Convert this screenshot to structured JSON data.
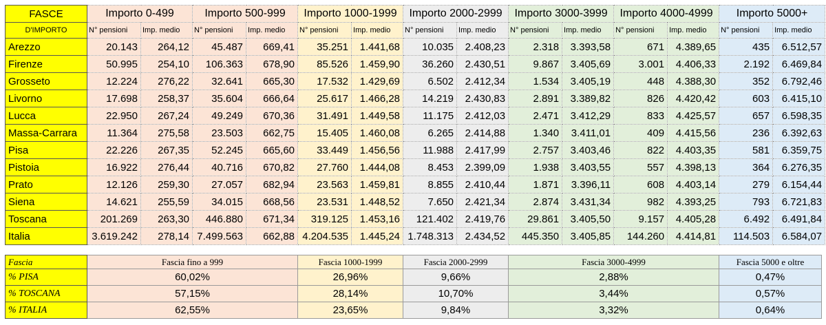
{
  "table1": {
    "corner": [
      "FASCE",
      "D'IMPORTO"
    ],
    "bands": [
      "Importo 0-499",
      "Importo 500-999",
      "Importo 1000-1999",
      "Importo 2000-2999",
      "Importo 3000-3999",
      "Importo 4000-4999",
      "Importo 5000+"
    ],
    "sub_labels": [
      "N° pensioni",
      "Imp. medio"
    ],
    "rows": [
      {
        "name": "Arezzo",
        "vals": [
          "20.143",
          "264,12",
          "45.487",
          "669,41",
          "35.251",
          "1.441,68",
          "10.035",
          "2.408,23",
          "2.318",
          "3.393,58",
          "671",
          "4.389,65",
          "435",
          "6.512,57"
        ]
      },
      {
        "name": "Firenze",
        "vals": [
          "50.995",
          "254,10",
          "106.363",
          "678,90",
          "85.526",
          "1.459,90",
          "36.260",
          "2.430,51",
          "9.867",
          "3.405,69",
          "3.001",
          "4.406,33",
          "2.192",
          "6.469,84"
        ]
      },
      {
        "name": "Grosseto",
        "vals": [
          "12.224",
          "276,22",
          "32.641",
          "665,30",
          "17.532",
          "1.429,69",
          "6.502",
          "2.412,34",
          "1.534",
          "3.405,19",
          "448",
          "4.388,30",
          "352",
          "6.792,46"
        ]
      },
      {
        "name": "Livorno",
        "vals": [
          "17.698",
          "258,37",
          "35.604",
          "666,64",
          "25.617",
          "1.466,28",
          "14.219",
          "2.430,83",
          "2.891",
          "3.389,82",
          "826",
          "4.420,42",
          "603",
          "6.415,10"
        ]
      },
      {
        "name": "Lucca",
        "vals": [
          "22.950",
          "267,24",
          "49.249",
          "670,36",
          "31.491",
          "1.449,58",
          "11.175",
          "2.412,03",
          "2.471",
          "3.412,29",
          "833",
          "4.425,57",
          "657",
          "6.598,35"
        ]
      },
      {
        "name": "Massa-Carrara",
        "vals": [
          "11.364",
          "275,58",
          "23.503",
          "662,75",
          "15.405",
          "1.460,08",
          "6.265",
          "2.414,88",
          "1.340",
          "3.411,01",
          "409",
          "4.415,56",
          "236",
          "6.392,63"
        ]
      },
      {
        "name": "Pisa",
        "vals": [
          "22.226",
          "267,35",
          "52.245",
          "665,60",
          "33.449",
          "1.456,56",
          "11.988",
          "2.417,99",
          "2.757",
          "3.403,46",
          "822",
          "4.403,35",
          "581",
          "6.359,75"
        ]
      },
      {
        "name": "Pistoia",
        "vals": [
          "16.922",
          "276,44",
          "40.716",
          "670,82",
          "27.760",
          "1.444,08",
          "8.453",
          "2.399,09",
          "1.938",
          "3.403,55",
          "557",
          "4.398,13",
          "364",
          "6.276,35"
        ]
      },
      {
        "name": "Prato",
        "vals": [
          "12.126",
          "259,30",
          "27.057",
          "682,94",
          "23.563",
          "1.459,81",
          "8.855",
          "2.410,44",
          "1.871",
          "3.396,11",
          "608",
          "4.403,14",
          "279",
          "6.154,44"
        ]
      },
      {
        "name": "Siena",
        "vals": [
          "14.621",
          "255,59",
          "34.015",
          "668,56",
          "23.531",
          "1.448,52",
          "7.650",
          "2.421,34",
          "2.874",
          "3.431,34",
          "982",
          "4.393,25",
          "793",
          "6.721,83"
        ]
      },
      {
        "name": "Toscana",
        "vals": [
          "201.269",
          "263,30",
          "446.880",
          "671,34",
          "319.125",
          "1.453,16",
          "121.402",
          "2.419,76",
          "29.861",
          "3.405,50",
          "9.157",
          "4.405,28",
          "6.492",
          "6.491,84"
        ]
      },
      {
        "name": "Italia",
        "vals": [
          "3.619.242",
          "278,14",
          "7.499.563",
          "662,88",
          "4.204.535",
          "1.445,24",
          "1.748.313",
          "2.434,52",
          "445.350",
          "3.405,85",
          "144.260",
          "4.414,81",
          "114.503",
          "6.584,07"
        ]
      }
    ]
  },
  "table2": {
    "header": [
      "Fascia",
      "Fascia fino a 999",
      "Fascia 1000-1999",
      "Fascia 2000-2999",
      "Fascia 3000-4999",
      "Fascia 5000 e oltre"
    ],
    "rows": [
      {
        "label": "% PISA",
        "vals": [
          "60,02%",
          "26,96%",
          "9,66%",
          "2,88%",
          "0,47%"
        ]
      },
      {
        "label": "% TOSCANA",
        "vals": [
          "57,15%",
          "28,14%",
          "10,70%",
          "3,44%",
          "0,57%"
        ]
      },
      {
        "label": "% ITALIA",
        "vals": [
          "62,55%",
          "23,65%",
          "9,84%",
          "3,32%",
          "0,64%"
        ]
      }
    ]
  },
  "colors": {
    "label_bg": "#ffff00",
    "band_0_999": "#fce4d6",
    "band_1000_1999": "#fff2cc",
    "band_2000_2999": "#ededed",
    "band_3000_4999": "#e2efda",
    "band_5000_plus": "#ddebf7"
  }
}
